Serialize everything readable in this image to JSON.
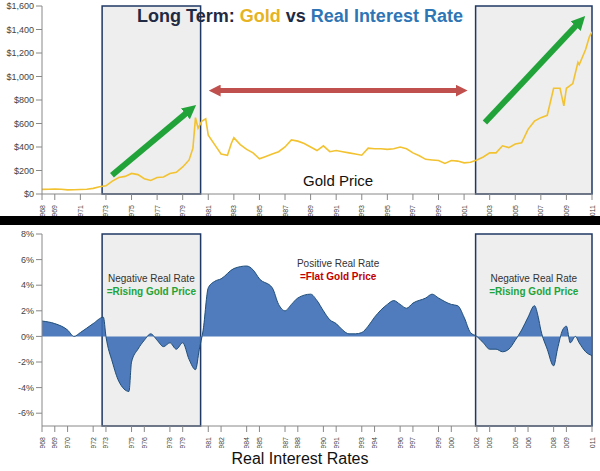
{
  "chart_data": [
    {
      "type": "line",
      "title": "Long Term: Gold vs Real Interest Rate",
      "label": "Gold Price",
      "color": "#f2c230",
      "grid": false,
      "x": [
        1968,
        1968.5,
        1969,
        1969.5,
        1970,
        1970.5,
        1971,
        1971.5,
        1972,
        1972.5,
        1973,
        1973.5,
        1974,
        1974.5,
        1975,
        1975.5,
        1976,
        1976.5,
        1977,
        1977.5,
        1978,
        1978.5,
        1979,
        1979.5,
        1979.8,
        1980,
        1980.2,
        1980.5,
        1980.8,
        1981,
        1981.5,
        1982,
        1982.5,
        1982.8,
        1983,
        1983.5,
        1984,
        1984.5,
        1985,
        1985.5,
        1986,
        1986.5,
        1987,
        1987.5,
        1988,
        1988.5,
        1989,
        1989.5,
        1990,
        1990.5,
        1991,
        1991.5,
        1992,
        1992.5,
        1993,
        1993.5,
        1994,
        1994.5,
        1995,
        1995.5,
        1996,
        1996.5,
        1997,
        1997.5,
        1998,
        1998.5,
        1999,
        1999.5,
        2000,
        2000.5,
        2001,
        2001.5,
        2002,
        2002.5,
        2003,
        2003.5,
        2004,
        2004.5,
        2005,
        2005.5,
        2006,
        2006.5,
        2007,
        2007.5,
        2008,
        2008.5,
        2008.8,
        2009,
        2009.5,
        2009.9,
        2010,
        2010.5,
        2010.8,
        2011
      ],
      "values": [
        39,
        40,
        42,
        41,
        35,
        36,
        38,
        41,
        48,
        62,
        70,
        110,
        140,
        150,
        175,
        165,
        130,
        115,
        140,
        145,
        175,
        185,
        230,
        290,
        390,
        650,
        560,
        620,
        640,
        500,
        420,
        340,
        330,
        430,
        480,
        420,
        380,
        350,
        300,
        320,
        340,
        360,
        400,
        460,
        450,
        430,
        400,
        370,
        410,
        360,
        370,
        360,
        350,
        340,
        330,
        390,
        385,
        385,
        380,
        385,
        400,
        385,
        350,
        325,
        295,
        290,
        285,
        260,
        285,
        280,
        265,
        270,
        290,
        315,
        350,
        350,
        410,
        395,
        425,
        435,
        550,
        620,
        650,
        670,
        900,
        900,
        750,
        900,
        940,
        1120,
        1100,
        1230,
        1340,
        1380
      ],
      "xlim": [
        1968,
        2011
      ],
      "xticks": [
        1968,
        1969,
        1971,
        1973,
        1975,
        1977,
        1979,
        1981,
        1983,
        1985,
        1987,
        1989,
        1991,
        1993,
        1995,
        1997,
        1999,
        2001,
        2003,
        2005,
        2007,
        2009,
        2011
      ],
      "ylim": [
        0,
        1600
      ],
      "yticks": [
        {
          "value": 0,
          "label": "$0"
        },
        {
          "value": 200,
          "label": "$200"
        },
        {
          "value": 400,
          "label": "$400"
        },
        {
          "value": 600,
          "label": "$600"
        },
        {
          "value": 800,
          "label": "$800"
        },
        {
          "value": 1000,
          "label": "$1,000"
        },
        {
          "value": 1200,
          "label": "$1,200"
        },
        {
          "value": 1400,
          "label": "$1,400"
        },
        {
          "value": 1600,
          "label": "$1,600"
        }
      ]
    },
    {
      "type": "area",
      "label": "Real Interest Rates",
      "color": "#3d6db5",
      "grid": false,
      "x": [
        1968,
        1969,
        1970,
        1970.5,
        1971,
        1972,
        1972.8,
        1973,
        1973.5,
        1974,
        1974.8,
        1975,
        1975.5,
        1976,
        1976.5,
        1977,
        1977.5,
        1978,
        1978.5,
        1979,
        1979.5,
        1980,
        1980.3,
        1980.6,
        1981,
        1981.5,
        1982,
        1983,
        1984,
        1984.5,
        1985,
        1986,
        1986.5,
        1987,
        1987.5,
        1988,
        1989,
        1989.5,
        1990,
        1990.5,
        1991,
        1991.5,
        1992,
        1992.5,
        1993,
        1993.5,
        1994,
        1995,
        1995.5,
        1996,
        1996.5,
        1997,
        1998,
        1998.5,
        1999,
        2000,
        2000.5,
        2001,
        2001.5,
        2002,
        2002.5,
        2003,
        2003.5,
        2004,
        2004.5,
        2005,
        2005.5,
        2006,
        2006.5,
        2006.8,
        2007,
        2007.5,
        2008,
        2008.3,
        2008.7,
        2009,
        2009.3,
        2009.7,
        2010,
        2010.5,
        2011
      ],
      "values": [
        1.2,
        1.0,
        0.5,
        0,
        0.3,
        1.0,
        1.5,
        0,
        -2,
        -3.5,
        -4.3,
        -2,
        -1,
        -0.3,
        0.2,
        -0.3,
        -0.8,
        -0.5,
        -1,
        -0.5,
        -1.8,
        -2.6,
        -1,
        0.5,
        3.8,
        4.3,
        4.5,
        5.3,
        5.5,
        5.2,
        4.5,
        3.8,
        2.5,
        2.0,
        2.5,
        3.0,
        3.3,
        2.8,
        2.0,
        1.3,
        1.0,
        0.5,
        0.2,
        0.2,
        0.3,
        0.8,
        1.5,
        2.5,
        2.8,
        2.5,
        2.2,
        2.6,
        3.0,
        3.3,
        3.0,
        2.5,
        2.4,
        1.5,
        0.3,
        0,
        -0.5,
        -1,
        -1,
        -1.2,
        -1,
        -0.3,
        0.5,
        1.5,
        2.4,
        1.5,
        0.5,
        -1,
        -2.3,
        -1,
        0.5,
        0.8,
        -0.5,
        0,
        -0.5,
        -1.2,
        -1.5
      ],
      "xlim": [
        1968,
        2011
      ],
      "xticks": [
        1968,
        1969,
        1970,
        1972,
        1973,
        1975,
        1976,
        1978,
        1979,
        1981,
        1982,
        1984,
        1985,
        1987,
        1988,
        1990,
        1991,
        1993,
        1994,
        1996,
        1997,
        1999,
        2000,
        2002,
        2003,
        2005,
        2006,
        2008,
        2009,
        2011
      ],
      "ylim": [
        -7,
        8
      ],
      "yticks": [
        {
          "value": -6,
          "label": "-6%"
        },
        {
          "value": -4,
          "label": "-4%"
        },
        {
          "value": -2,
          "label": "-2%"
        },
        {
          "value": 0,
          "label": "0%"
        },
        {
          "value": 2,
          "label": "2%"
        },
        {
          "value": 4,
          "label": "4%"
        },
        {
          "value": 6,
          "label": "6%"
        },
        {
          "value": 8,
          "label": "8%"
        }
      ],
      "regions": [
        {
          "xlim": [
            1972.7,
            1980.4
          ],
          "text": [
            "Negative Real Rate",
            "=Rising Gold Price"
          ]
        },
        {
          "xlim": [
            2001.9,
            2011
          ],
          "text": [
            "Negative Real Rate",
            "=Rising Gold Price"
          ]
        }
      ],
      "annotations": [
        "Positive Real Rate",
        "=Flat Gold Price"
      ]
    }
  ]
}
